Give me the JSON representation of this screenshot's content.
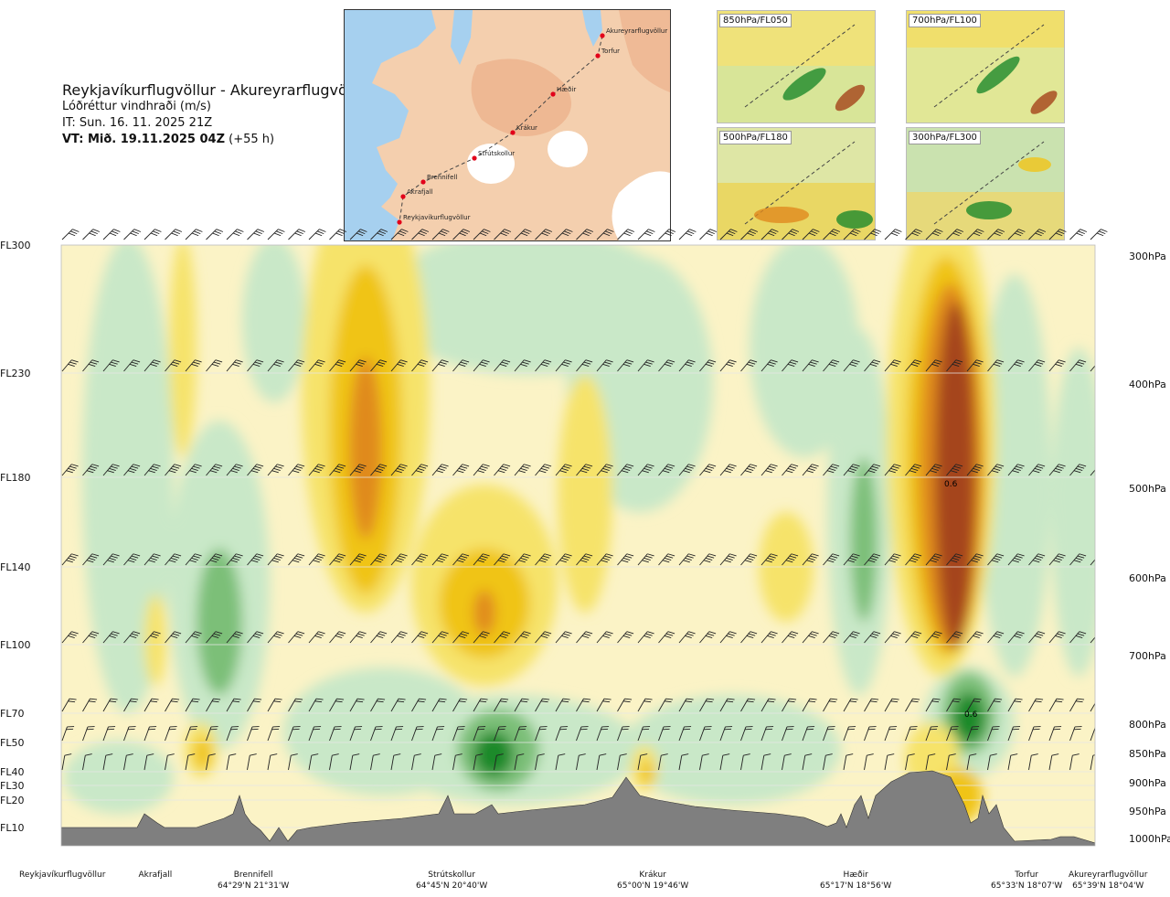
{
  "header": {
    "route": "Reykjavíkurflugvöllur - Akureyrarflugvöllur",
    "variable": "Lóðréttur vindhraði (m/s)",
    "issue": "IT: Sun. 16. 11. 2025 21Z",
    "valid_prefix": "VT: Mið. 19.11.2025 04Z",
    "valid_suffix": "(+55 h)"
  },
  "map": {
    "waypoints": [
      {
        "name": "Akureyrarflugvöllur"
      },
      {
        "name": "Torfur"
      },
      {
        "name": "Hæðir"
      },
      {
        "name": "Krákur"
      },
      {
        "name": "Strútskollur"
      },
      {
        "name": "Brennifell"
      },
      {
        "name": "Akrafjall"
      },
      {
        "name": "Reykjavíkurflugvöllur"
      }
    ],
    "colors": {
      "sea": "#a6d0ef",
      "land": "#f4cfae",
      "glacier": "#ffffff",
      "route": "#444444",
      "point": "#e2001a"
    }
  },
  "insets": [
    {
      "label": "850hPa/FL050"
    },
    {
      "label": "700hPa/FL100"
    },
    {
      "label": "500hPa/FL180"
    },
    {
      "label": "300hPa/FL300"
    }
  ],
  "chart_data": {
    "type": "heatmap",
    "title": "Lóðréttur vindhraði (m/s)",
    "levels": [
      {
        "fl": "FL300",
        "hpa": "300hPa"
      },
      {
        "fl": "FL230",
        "hpa": "400hPa"
      },
      {
        "fl": "FL180",
        "hpa": "500hPa"
      },
      {
        "fl": "FL140",
        "hpa": "600hPa"
      },
      {
        "fl": "FL100",
        "hpa": "700hPa"
      },
      {
        "fl": "FL70",
        "hpa": "800hPa"
      },
      {
        "fl": "FL50",
        "hpa": "850hPa"
      },
      {
        "fl": "FL40",
        "hpa": "900hPa"
      },
      {
        "fl": "FL30",
        "hpa": ""
      },
      {
        "fl": "FL20",
        "hpa": "950hPa"
      },
      {
        "fl": "FL10",
        "hpa": "1000hPa"
      }
    ],
    "sites": [
      {
        "name": "Reykjavíkurflugvöllur",
        "coord": ""
      },
      {
        "name": "Akrafjall",
        "coord": ""
      },
      {
        "name": "Brennifell",
        "coord": "64°29'N 21°31'W"
      },
      {
        "name": "Strútskollur",
        "coord": "64°45'N 20°40'W"
      },
      {
        "name": "Krákur",
        "coord": "65°00'N 19°46'W"
      },
      {
        "name": "Hæðir",
        "coord": "65°17'N 18°56'W"
      },
      {
        "name": "Torfur",
        "coord": "65°33'N 18°07'W"
      },
      {
        "name": "Akureyrarflugvöllur",
        "coord": "65°39'N 18°04'W"
      }
    ],
    "annotations": [
      "0.6",
      "0.6"
    ],
    "colors": {
      "strong_up": "#1e8a2c",
      "up": "#7bbf78",
      "weak_up": "#c9e8c8",
      "neutral": "#fbf3c6",
      "weak_down": "#f6e36a",
      "down": "#f0c419",
      "strong_down": "#e08a1e",
      "very_strong_down": "#a5441a",
      "terrain": "#7f7f7f"
    },
    "grid": true
  }
}
